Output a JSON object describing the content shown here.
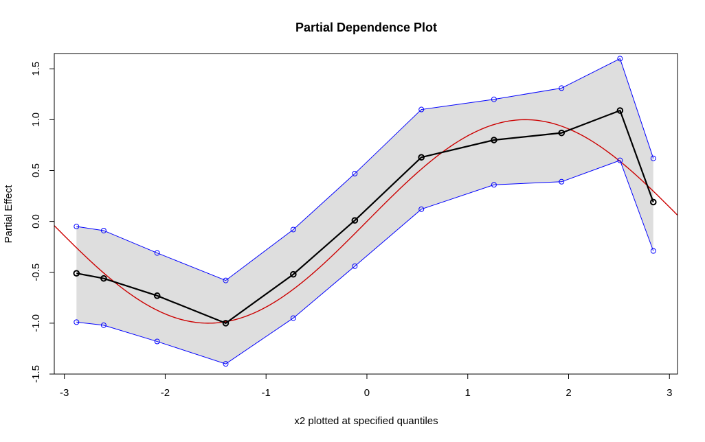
{
  "chart_data": {
    "type": "line",
    "title": "Partial Dependence Plot",
    "xlabel": "x2 plotted at specified quantiles",
    "ylabel": "Partial Effect",
    "xlim": [
      -3.1,
      3.08
    ],
    "ylim": [
      -1.5,
      1.65
    ],
    "x_ticks": [
      -3,
      -2,
      -1,
      0,
      1,
      2,
      3
    ],
    "x_tick_labels": [
      "-3",
      "-2",
      "-1",
      "0",
      "1",
      "2",
      "3"
    ],
    "y_ticks": [
      -1.5,
      -1.0,
      -0.5,
      0.0,
      0.5,
      1.0,
      1.5
    ],
    "y_tick_labels": [
      "-1.5",
      "-1.0",
      "-0.5",
      "0.0",
      "0.5",
      "1.0",
      "1.5"
    ],
    "grid": false,
    "x": [
      -2.88,
      -2.61,
      -2.08,
      -1.4,
      -0.73,
      -0.12,
      0.54,
      1.26,
      1.93,
      2.51,
      2.84
    ],
    "series": [
      {
        "role": "estimate",
        "color": "#000000",
        "values": [
          -0.51,
          -0.56,
          -0.73,
          -1.0,
          -0.52,
          0.01,
          0.63,
          0.8,
          0.87,
          1.09,
          0.19
        ]
      },
      {
        "role": "upper-band",
        "color": "#0000ff",
        "values": [
          -0.05,
          -0.09,
          -0.31,
          -0.58,
          -0.08,
          0.47,
          1.1,
          1.2,
          1.31,
          1.6,
          0.62
        ]
      },
      {
        "role": "lower-band",
        "color": "#0000ff",
        "values": [
          -0.99,
          -1.02,
          -1.18,
          -1.4,
          -0.95,
          -0.44,
          0.12,
          0.36,
          0.39,
          0.6,
          -0.29
        ]
      },
      {
        "role": "true-function",
        "color": "#cc0000",
        "function": "sin",
        "x_range": [
          -3.1,
          3.08
        ]
      }
    ],
    "band_fill_color": "#dedede"
  }
}
